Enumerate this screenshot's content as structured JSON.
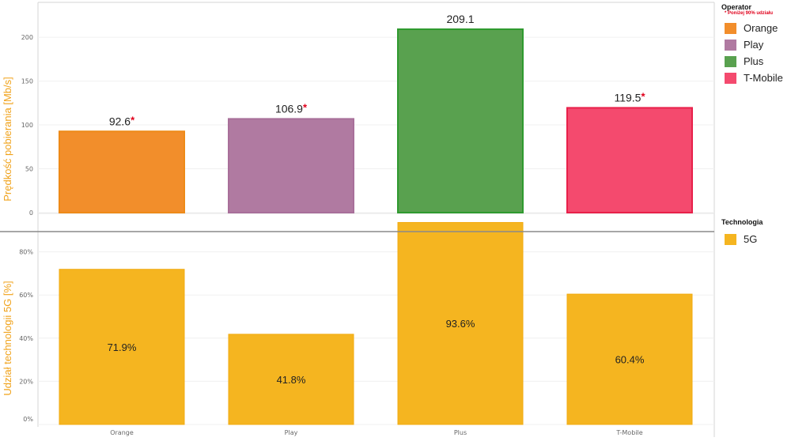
{
  "chart_data": [
    {
      "type": "bar",
      "ylabel": "Prędkość pobierania [Mb/s]",
      "ylim": [
        0,
        240
      ],
      "yticks": [
        "0",
        "50",
        "100",
        "150",
        "200"
      ],
      "categories": [
        "Orange",
        "Play",
        "Plus",
        "T-Mobile"
      ],
      "values": [
        92.6,
        106.9,
        209.1,
        119.5
      ],
      "value_labels": [
        "92.6",
        "106.9",
        "209.1",
        "119.5"
      ],
      "flags": [
        "*",
        "*",
        "",
        "*"
      ],
      "colors": [
        "#f28e2b",
        "#b07aa1",
        "#59a14f",
        "#f44a6e"
      ],
      "border_colors": [
        "#ee8a18",
        "#a86f9a",
        "#2f9a2f",
        "#e8204a"
      ]
    },
    {
      "type": "bar",
      "ylabel": "Udział technologii 5G [%]",
      "ylim": [
        0,
        90
      ],
      "yticks": [
        "0%",
        "20%",
        "40%",
        "60%",
        "80%"
      ],
      "categories": [
        "Orange",
        "Play",
        "Plus",
        "T-Mobile"
      ],
      "values": [
        71.9,
        41.8,
        93.6,
        60.4
      ],
      "value_labels": [
        "71.9%",
        "41.8%",
        "93.6%",
        "60.4%"
      ],
      "series_name": "5G",
      "color": "#f5b520",
      "border_color": "#f2ab10"
    }
  ],
  "legend_operator": {
    "title": "Operator",
    "note": "* Poniżej 90% udziału",
    "items": [
      {
        "label": "Orange",
        "color": "#f28e2b"
      },
      {
        "label": "Play",
        "color": "#b07aa1"
      },
      {
        "label": "Plus",
        "color": "#59a14f"
      },
      {
        "label": "T-Mobile",
        "color": "#f44a6e"
      }
    ]
  },
  "legend_technology": {
    "title": "Technologia",
    "items": [
      {
        "label": "5G",
        "color": "#f5b520"
      }
    ]
  }
}
